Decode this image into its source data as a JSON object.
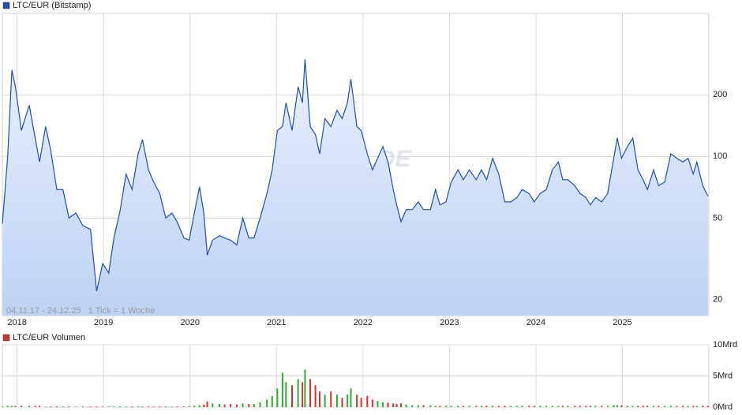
{
  "chart_data": [
    {
      "type": "line",
      "series": [
        {
          "name": "LTC/EUR (Bitstamp)",
          "color": "#1f4fa8",
          "values": [
            47,
            98,
            265,
            220,
            134,
            178,
            123,
            94,
            140,
            107,
            69,
            69,
            50,
            53,
            46,
            44,
            22,
            30,
            27,
            40,
            54,
            82,
            69,
            103,
            121,
            86,
            75,
            66,
            50,
            53,
            48,
            40,
            39,
            53,
            71,
            53,
            33,
            39,
            41,
            40,
            39,
            37,
            50,
            40,
            40,
            50,
            66,
            86,
            134,
            140,
            183,
            134,
            219,
            183,
            298,
            140,
            128,
            103,
            153,
            140,
            168,
            153,
            183,
            239,
            140,
            134,
            103,
            86,
            98,
            112,
            94,
            69,
            58,
            48,
            55,
            55,
            60,
            55,
            55,
            69,
            58,
            60,
            75,
            86,
            77,
            86,
            77,
            86,
            77,
            98,
            82,
            60,
            60,
            63,
            69,
            66,
            60,
            66,
            69,
            86,
            94,
            77,
            77,
            72,
            66,
            63,
            58,
            63,
            60,
            66,
            98,
            123,
            98,
            112,
            123,
            86,
            77,
            69,
            86,
            72,
            75,
            103,
            98,
            94,
            98,
            82,
            94,
            72,
            64
          ]
        }
      ],
      "x": [
        2017.83,
        2017.89,
        2017.94,
        2017.98,
        2018.05,
        2018.14,
        2018.21,
        2018.26,
        2018.33,
        2018.39,
        2018.46,
        2018.53,
        2018.6,
        2018.68,
        2018.76,
        2018.85,
        2018.92,
        2018.99,
        2019.06,
        2019.12,
        2019.19,
        2019.26,
        2019.33,
        2019.4,
        2019.45,
        2019.52,
        2019.58,
        2019.65,
        2019.72,
        2019.79,
        2019.85,
        2019.93,
        2019.99,
        2020.05,
        2020.11,
        2020.16,
        2020.2,
        2020.26,
        2020.34,
        2020.4,
        2020.47,
        2020.54,
        2020.61,
        2020.68,
        2020.74,
        2020.81,
        2020.89,
        2020.95,
        2021.01,
        2021.07,
        2021.11,
        2021.18,
        2021.25,
        2021.3,
        2021.33,
        2021.39,
        2021.45,
        2021.5,
        2021.56,
        2021.63,
        2021.7,
        2021.76,
        2021.82,
        2021.86,
        2021.93,
        2021.98,
        2022.05,
        2022.11,
        2022.17,
        2022.23,
        2022.29,
        2022.35,
        2022.39,
        2022.44,
        2022.5,
        2022.57,
        2022.64,
        2022.7,
        2022.78,
        2022.84,
        2022.89,
        2022.96,
        2023.02,
        2023.1,
        2023.16,
        2023.23,
        2023.31,
        2023.37,
        2023.43,
        2023.5,
        2023.57,
        2023.64,
        2023.71,
        2023.78,
        2023.84,
        2023.92,
        2023.98,
        2024.05,
        2024.12,
        2024.19,
        2024.26,
        2024.31,
        2024.37,
        2024.45,
        2024.51,
        2024.58,
        2024.63,
        2024.69,
        2024.76,
        2024.83,
        2024.9,
        2024.94,
        2024.99,
        2025.06,
        2025.12,
        2025.18,
        2025.24,
        2025.29,
        2025.36,
        2025.42,
        2025.49,
        2025.56,
        2025.63,
        2025.7,
        2025.76,
        2025.82,
        2025.86,
        2025.93,
        2025.99
      ],
      "xlim": [
        2017.83,
        2026.0
      ],
      "xticks": [
        2018,
        2019,
        2020,
        2021,
        2022,
        2023,
        2024,
        2025
      ],
      "ylim": [
        16.7,
        500
      ],
      "yticks": [
        20,
        50,
        100,
        200
      ],
      "log_y": true,
      "grid": true,
      "annotation": "04.11.17 - 24.12.25   1 Tick = 1 Woche",
      "watermark": "ARIVA.DE"
    },
    {
      "type": "bar",
      "series": [
        {
          "name": "LTC/EUR Volumen",
          "color": "#c0392b",
          "values": [
            0.1,
            0.2,
            0.2,
            0.2,
            0.2,
            0.2,
            0.2,
            0.2,
            0.1,
            0.1,
            0.1,
            0.1,
            0.1,
            0.1,
            0.1,
            0.1,
            0.1,
            0.1,
            0.1,
            0.1,
            0.1,
            0.1,
            0.1,
            0.1,
            0.1,
            0.1,
            0.1,
            0.1,
            0.1,
            0.1,
            0.1,
            0.1,
            0.1,
            0.2,
            0.3,
            0.4,
            0.9,
            0.6,
            0.5,
            0.4,
            0.5,
            0.4,
            0.6,
            0.5,
            0.5,
            0.8,
            1.2,
            1.8,
            3.0,
            5.5,
            4.0,
            3.5,
            4.5,
            4.0,
            6.0,
            4.5,
            3.5,
            2.5,
            2.0,
            2.5,
            2.0,
            1.5,
            2.0,
            3.0,
            2.0,
            1.5,
            1.8,
            1.2,
            1.0,
            0.8,
            0.7,
            0.6,
            0.5,
            0.6,
            0.4,
            0.3,
            0.3,
            0.3,
            0.3,
            0.2,
            0.2,
            0.2,
            0.2,
            0.2,
            0.2,
            0.2,
            0.2,
            0.2,
            0.2,
            0.2,
            0.2,
            0.2,
            0.2,
            0.2,
            0.2,
            0.2,
            0.2,
            0.2,
            0.2,
            0.2,
            0.2,
            0.2,
            0.2,
            0.2,
            0.2,
            0.2,
            0.2,
            0.2,
            0.2,
            0.2,
            0.3,
            0.3,
            0.3,
            0.2,
            0.2,
            0.2,
            0.2,
            0.2,
            0.2,
            0.2,
            0.2,
            0.2,
            0.2,
            0.2,
            0.2,
            0.2,
            0.2,
            0.2,
            0.2
          ],
          "colors": [
            "#3a3",
            "#3a3",
            "#3a3",
            "#c33",
            "#c33",
            "#3a3",
            "#c33",
            "#c33",
            "#3a3",
            "#c33",
            "#c33",
            "#3a3",
            "#c33",
            "#3a3",
            "#c33",
            "#c33",
            "#c33",
            "#3a3",
            "#c33",
            "#3a3",
            "#3a3",
            "#3a3",
            "#c33",
            "#3a3",
            "#3a3",
            "#c33",
            "#c33",
            "#c33",
            "#c33",
            "#3a3",
            "#c33",
            "#c33",
            "#c33",
            "#3a3",
            "#3a3",
            "#c33",
            "#c33",
            "#3a3",
            "#3a3",
            "#c33",
            "#c33",
            "#c33",
            "#3a3",
            "#c33",
            "#3a3",
            "#3a3",
            "#3a3",
            "#3a3",
            "#3a3",
            "#3a3",
            "#3a3",
            "#c33",
            "#3a3",
            "#c33",
            "#3a3",
            "#c33",
            "#c33",
            "#c33",
            "#3a3",
            "#c33",
            "#3a3",
            "#c33",
            "#3a3",
            "#3a3",
            "#c33",
            "#c33",
            "#c33",
            "#c33",
            "#3a3",
            "#3a3",
            "#c33",
            "#c33",
            "#c33",
            "#c33",
            "#3a3",
            "#3a3",
            "#3a3",
            "#c33",
            "#3a3",
            "#3a3",
            "#c33",
            "#3a3",
            "#3a3",
            "#3a3",
            "#c33",
            "#3a3",
            "#c33",
            "#3a3",
            "#c33",
            "#3a3",
            "#c33",
            "#c33",
            "#3a3",
            "#3a3",
            "#3a3",
            "#c33",
            "#c33",
            "#3a3",
            "#3a3",
            "#3a3",
            "#3a3",
            "#c33",
            "#3a3",
            "#c33",
            "#c33",
            "#c33",
            "#c33",
            "#3a3",
            "#c33",
            "#3a3",
            "#3a3",
            "#3a3",
            "#c33",
            "#3a3",
            "#3a3",
            "#c33",
            "#c33",
            "#c33",
            "#3a3",
            "#c33",
            "#3a3",
            "#3a3",
            "#c33",
            "#c33",
            "#3a3",
            "#c33",
            "#3a3",
            "#c33",
            "#c33"
          ]
        }
      ],
      "x": [
        2017.83,
        2017.89,
        2017.94,
        2017.98,
        2018.05,
        2018.14,
        2018.21,
        2018.26,
        2018.33,
        2018.39,
        2018.46,
        2018.53,
        2018.6,
        2018.68,
        2018.76,
        2018.85,
        2018.92,
        2018.99,
        2019.06,
        2019.12,
        2019.19,
        2019.26,
        2019.33,
        2019.4,
        2019.45,
        2019.52,
        2019.58,
        2019.65,
        2019.72,
        2019.79,
        2019.85,
        2019.93,
        2019.99,
        2020.05,
        2020.11,
        2020.16,
        2020.2,
        2020.26,
        2020.34,
        2020.4,
        2020.47,
        2020.54,
        2020.61,
        2020.68,
        2020.74,
        2020.81,
        2020.89,
        2020.95,
        2021.01,
        2021.07,
        2021.11,
        2021.18,
        2021.25,
        2021.3,
        2021.33,
        2021.39,
        2021.45,
        2021.5,
        2021.56,
        2021.63,
        2021.7,
        2021.76,
        2021.82,
        2021.86,
        2021.93,
        2021.98,
        2022.05,
        2022.11,
        2022.17,
        2022.23,
        2022.29,
        2022.35,
        2022.39,
        2022.44,
        2022.5,
        2022.57,
        2022.64,
        2022.7,
        2022.78,
        2022.84,
        2022.89,
        2022.96,
        2023.02,
        2023.1,
        2023.16,
        2023.23,
        2023.31,
        2023.37,
        2023.43,
        2023.5,
        2023.57,
        2023.64,
        2023.71,
        2023.78,
        2023.84,
        2023.92,
        2023.98,
        2024.05,
        2024.12,
        2024.19,
        2024.26,
        2024.31,
        2024.37,
        2024.45,
        2024.51,
        2024.58,
        2024.63,
        2024.69,
        2024.76,
        2024.83,
        2024.9,
        2024.94,
        2024.99,
        2025.06,
        2025.12,
        2025.18,
        2025.24,
        2025.29,
        2025.36,
        2025.42,
        2025.49,
        2025.56,
        2025.63,
        2025.7,
        2025.76,
        2025.82,
        2025.86,
        2025.93,
        2025.99
      ],
      "xlim": [
        2017.83,
        2026.0
      ],
      "ylim": [
        0,
        10
      ],
      "yticks": [
        {
          "value": 0,
          "label": "0Mrd"
        },
        {
          "value": 5,
          "label": "5Mrd"
        },
        {
          "value": 10,
          "label": "10Mrd"
        }
      ],
      "grid": true
    }
  ]
}
